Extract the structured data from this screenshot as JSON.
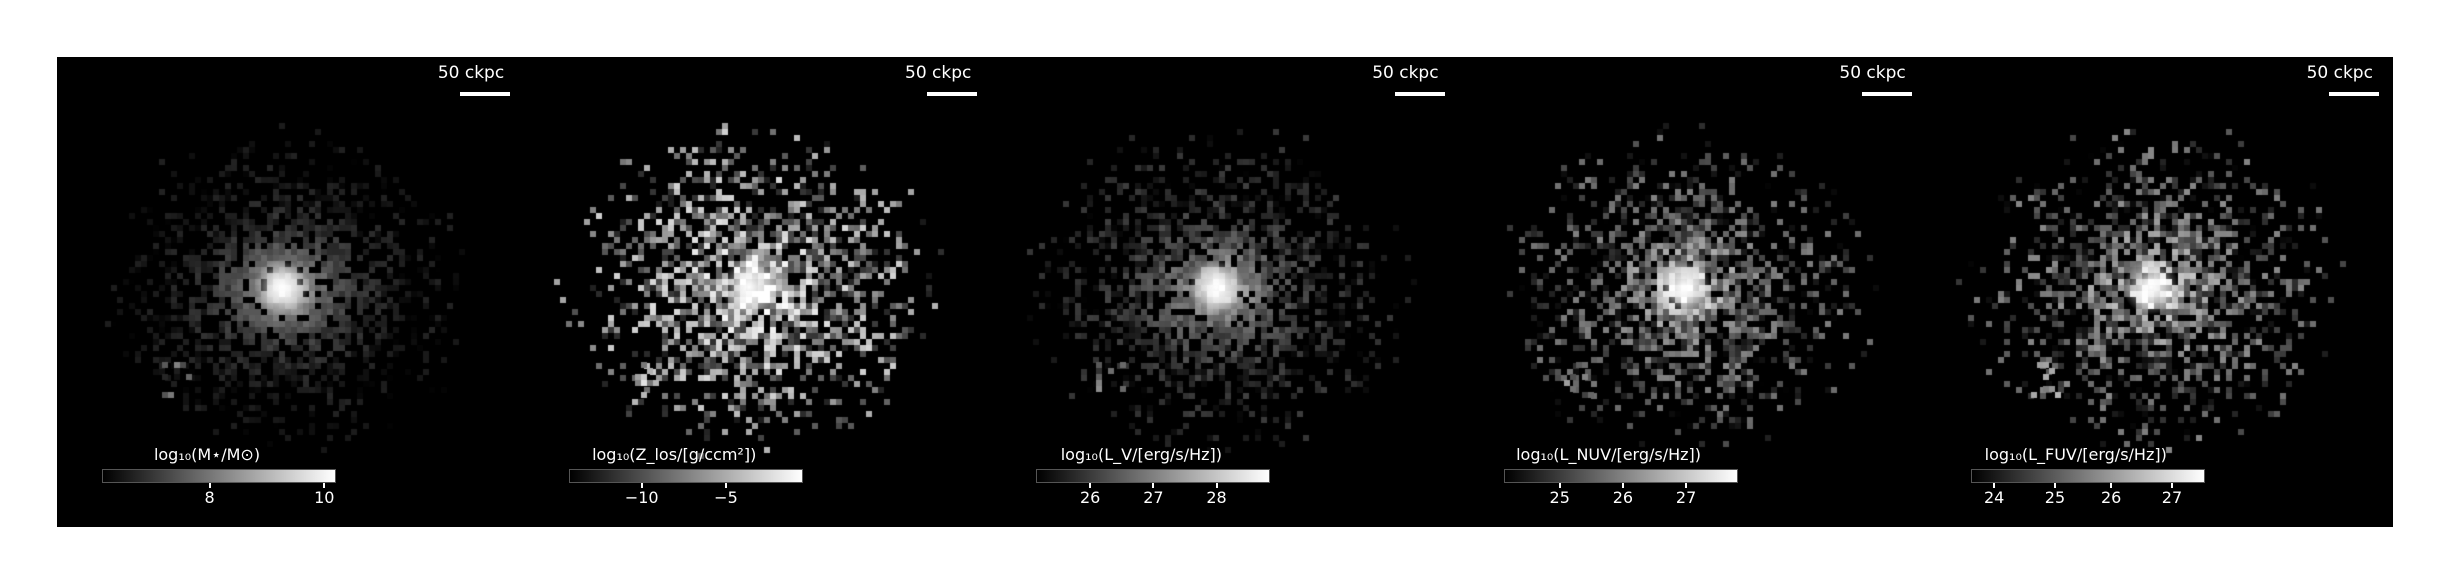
{
  "panels": [
    {
      "id": "mass",
      "scalebar": "50 ckpc",
      "colorbar_label": "log₁₀(M⋆/M⊙)",
      "ticks": [
        "8",
        "10"
      ],
      "tick_frac": [
        0.46,
        0.95
      ],
      "noise": 0.15,
      "floor": 0.05
    },
    {
      "id": "metallicity",
      "scalebar": "50 ckpc",
      "colorbar_label": "log₁₀(Z_los/[g/ccm²])",
      "ticks": [
        "−10",
        "−5"
      ],
      "tick_frac": [
        0.31,
        0.67
      ],
      "noise": 0.75,
      "floor": 0.45
    },
    {
      "id": "lv",
      "scalebar": "50 ckpc",
      "colorbar_label": "log₁₀(L_V/[erg/s/Hz])",
      "ticks": [
        "26",
        "27",
        "28"
      ],
      "tick_frac": [
        0.23,
        0.5,
        0.77
      ],
      "noise": 0.25,
      "floor": 0.1
    },
    {
      "id": "lnuv",
      "scalebar": "50 ckpc",
      "colorbar_label": "log₁₀(L_NUV/[erg/s/Hz])",
      "ticks": [
        "25",
        "26",
        "27"
      ],
      "tick_frac": [
        0.24,
        0.51,
        0.78
      ],
      "noise": 0.55,
      "floor": 0.2
    },
    {
      "id": "lfuv",
      "scalebar": "50 ckpc",
      "colorbar_label": "log₁₀(L_FUV/[erg/s/Hz])",
      "ticks": [
        "24",
        "25",
        "26",
        "27"
      ],
      "tick_frac": [
        0.1,
        0.36,
        0.6,
        0.86
      ],
      "noise": 0.6,
      "floor": 0.22
    }
  ]
}
